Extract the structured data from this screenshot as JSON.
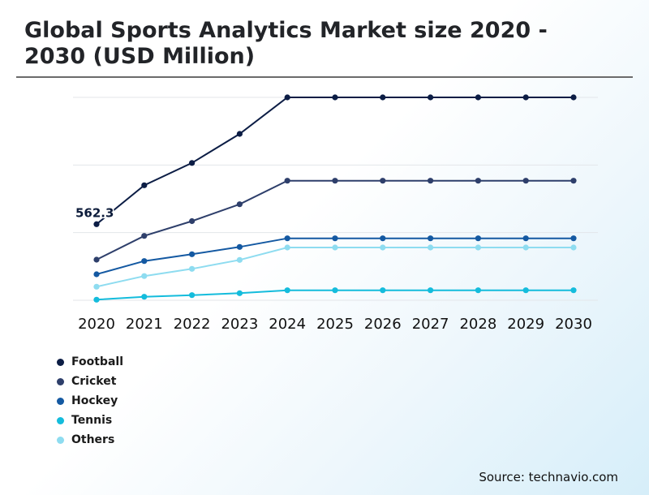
{
  "title": "Global Sports Analytics Market size 2020 - 2030 (USD Million)",
  "source": "Source: technavio.com",
  "chart_data": {
    "type": "line",
    "title": "Global Sports Analytics Market size 2020 - 2030 (USD Million)",
    "xlabel": "",
    "ylabel": "",
    "x": [
      "2020",
      "2021",
      "2022",
      "2023",
      "2024",
      "2025",
      "2026",
      "2027",
      "2028",
      "2029",
      "2030"
    ],
    "ylim": [
      0,
      1500
    ],
    "grid": true,
    "legend_position": "bottom-left",
    "annotations": [
      {
        "series": "Football",
        "x": "2020",
        "text": "562.3"
      }
    ],
    "series": [
      {
        "name": "Football",
        "color": "#0c1d45",
        "values": [
          562.3,
          850,
          1015,
          1230,
          1500,
          1500,
          1500,
          1500,
          1500,
          1500,
          1500
        ]
      },
      {
        "name": "Cricket",
        "color": "#2e3f6b",
        "values": [
          300,
          476,
          585,
          710,
          884,
          884,
          884,
          884,
          884,
          884,
          884
        ]
      },
      {
        "name": "Hockey",
        "color": "#1459a2",
        "values": [
          192,
          290,
          340,
          394,
          458,
          458,
          458,
          458,
          458,
          458,
          458
        ]
      },
      {
        "name": "Tennis",
        "color": "#14bcdc",
        "values": [
          4,
          26,
          38,
          52,
          74,
          74,
          74,
          74,
          74,
          74,
          74
        ]
      },
      {
        "name": "Others",
        "color": "#8edcf0",
        "values": [
          100,
          179,
          232,
          298,
          390,
          390,
          390,
          390,
          390,
          390,
          390
        ]
      }
    ]
  }
}
